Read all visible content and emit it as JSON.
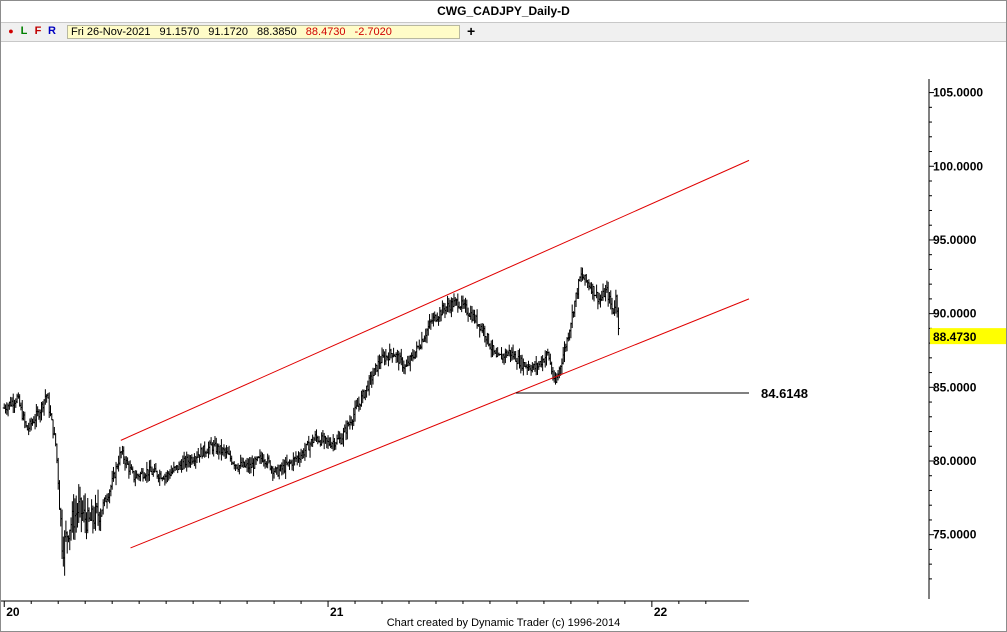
{
  "window": {
    "title": "CWG_CADJPY_Daily-D"
  },
  "toolbar": {
    "dot_glyph": "●",
    "l_label": "L",
    "f_label": "F",
    "r_label": "R",
    "plus_label": "+"
  },
  "ohlc": {
    "date": "Fri 26-Nov-2021",
    "open": "91.1570",
    "high": "91.1720",
    "low": "88.3850",
    "close": "88.4730",
    "change": "-2.7020"
  },
  "footer": {
    "credit": "Chart created by Dynamic Trader  (c) 1996-2014"
  },
  "colors": {
    "bars": "#000000",
    "channel": "#e00000",
    "price_label_bg": "#ffff00",
    "ohlc_bg": "#fffcc8",
    "change_text": "#d00000"
  },
  "chart_data": {
    "type": "ohlc",
    "title": "CWG_CADJPY_Daily-D",
    "x_domain": [
      2019.99,
      2022.3
    ],
    "ylim": [
      70.5,
      108.5
    ],
    "y_ticks": [
      {
        "value": 105,
        "label": "105.0000"
      },
      {
        "value": 100,
        "label": "100.0000"
      },
      {
        "value": 95,
        "label": "95.0000"
      },
      {
        "value": 90,
        "label": "90.0000"
      },
      {
        "value": 85,
        "label": "85.0000"
      },
      {
        "value": 80,
        "label": "80.0000"
      },
      {
        "value": 75,
        "label": "75.0000"
      }
    ],
    "x_ticks": [
      {
        "value": 2020,
        "label": "20"
      },
      {
        "value": 2021,
        "label": "21"
      },
      {
        "value": 2022,
        "label": "22"
      }
    ],
    "last_price": {
      "value": 88.473,
      "label": "88.4730"
    },
    "support_line": {
      "x_start": 2021.58,
      "x_end": 2022.3,
      "value": 84.6148,
      "label": "84.6148"
    },
    "channel": {
      "upper": [
        [
          2020.36,
          81.4
        ],
        [
          2022.3,
          100.4
        ]
      ],
      "lower": [
        [
          2020.39,
          74.1
        ],
        [
          2022.3,
          91.0
        ]
      ]
    },
    "price_path": [
      [
        2020.0,
        83.6
      ],
      [
        2020.04,
        84.3
      ],
      [
        2020.07,
        82.1
      ],
      [
        2020.11,
        83.4
      ],
      [
        2020.13,
        84.6
      ],
      [
        2020.16,
        81.0
      ],
      [
        2020.18,
        74.0
      ],
      [
        2020.2,
        75.5
      ],
      [
        2020.23,
        76.8
      ],
      [
        2020.26,
        75.8
      ],
      [
        2020.3,
        76.7
      ],
      [
        2020.33,
        78.3
      ],
      [
        2020.36,
        80.6
      ],
      [
        2020.4,
        78.9
      ],
      [
        2020.44,
        79.3
      ],
      [
        2020.5,
        79.0
      ],
      [
        2020.55,
        79.8
      ],
      [
        2020.6,
        80.5
      ],
      [
        2020.64,
        81.0
      ],
      [
        2020.68,
        80.6
      ],
      [
        2020.72,
        79.7
      ],
      [
        2020.76,
        79.6
      ],
      [
        2020.8,
        80.3
      ],
      [
        2020.84,
        79.2
      ],
      [
        2020.88,
        79.8
      ],
      [
        2020.92,
        80.5
      ],
      [
        2020.96,
        81.6
      ],
      [
        2021.0,
        81.2
      ],
      [
        2021.04,
        81.5
      ],
      [
        2021.08,
        83.2
      ],
      [
        2021.12,
        85.0
      ],
      [
        2021.16,
        86.8
      ],
      [
        2021.2,
        87.4
      ],
      [
        2021.24,
        86.3
      ],
      [
        2021.28,
        87.8
      ],
      [
        2021.32,
        89.5
      ],
      [
        2021.36,
        90.4
      ],
      [
        2021.4,
        90.8
      ],
      [
        2021.44,
        90.0
      ],
      [
        2021.48,
        88.9
      ],
      [
        2021.52,
        86.9
      ],
      [
        2021.56,
        87.4
      ],
      [
        2021.6,
        86.6
      ],
      [
        2021.64,
        86.3
      ],
      [
        2021.68,
        87.3
      ],
      [
        2021.7,
        85.1
      ],
      [
        2021.72,
        86.7
      ],
      [
        2021.74,
        88.4
      ],
      [
        2021.76,
        90.6
      ],
      [
        2021.78,
        92.6
      ],
      [
        2021.81,
        91.9
      ],
      [
        2021.84,
        90.9
      ],
      [
        2021.86,
        91.6
      ],
      [
        2021.88,
        90.1
      ],
      [
        2021.89,
        91.2
      ],
      [
        2021.9,
        88.4
      ]
    ]
  }
}
